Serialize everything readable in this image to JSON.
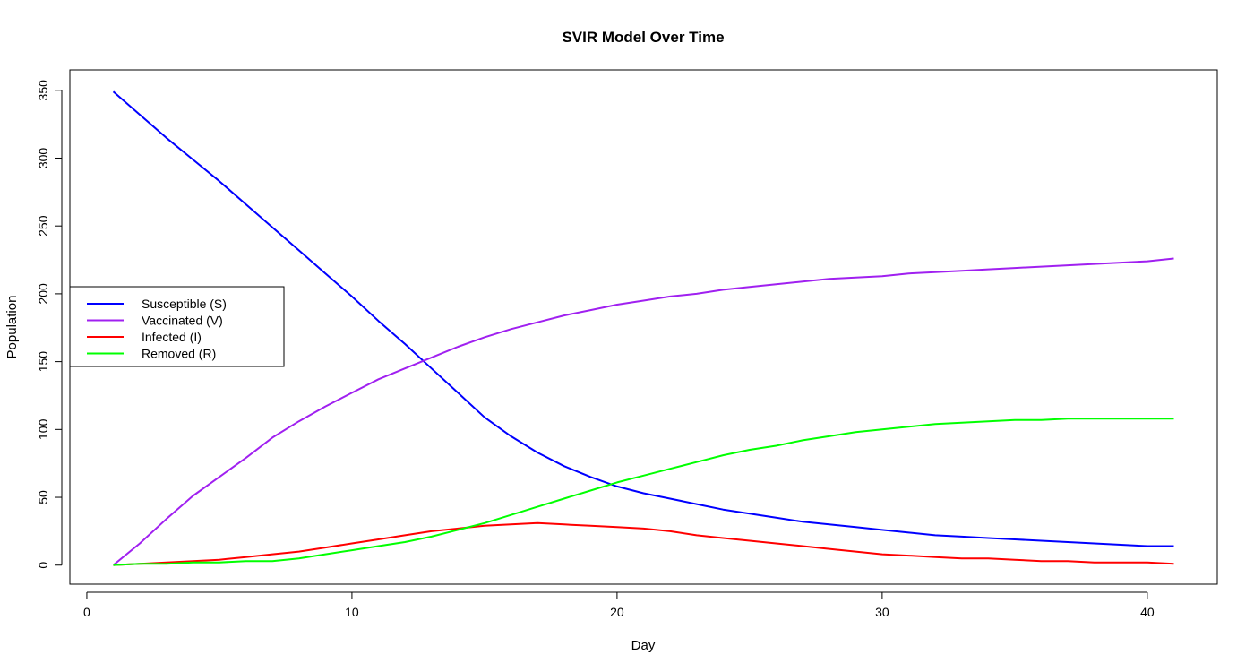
{
  "chart_data": {
    "type": "line",
    "title": "SVIR Model Over Time",
    "xlabel": "Day",
    "ylabel": "Population",
    "xlim": [
      -0.64,
      42.64
    ],
    "ylim": [
      -14.04,
      365.04
    ],
    "xticks": [
      0,
      10,
      20,
      30,
      40
    ],
    "yticks": [
      0,
      50,
      100,
      150,
      200,
      250,
      300,
      350
    ],
    "grid": false,
    "legend_position": "left",
    "x": [
      1,
      2,
      3,
      4,
      5,
      6,
      7,
      8,
      9,
      10,
      11,
      12,
      13,
      14,
      15,
      16,
      17,
      18,
      19,
      20,
      21,
      22,
      23,
      24,
      25,
      26,
      27,
      28,
      29,
      30,
      31,
      32,
      33,
      34,
      35,
      36,
      37,
      38,
      39,
      40,
      41
    ],
    "series": [
      {
        "name": "Susceptible (S)",
        "color": "#0000ff",
        "values": [
          349,
          332,
          315,
          299,
          283,
          266,
          249,
          232,
          215,
          198,
          180,
          163,
          145,
          127,
          109,
          95,
          83,
          73,
          65,
          58,
          53,
          49,
          45,
          41,
          38,
          35,
          32,
          30,
          28,
          26,
          24,
          22,
          21,
          20,
          19,
          18,
          17,
          16,
          15,
          14,
          14
        ]
      },
      {
        "name": "Vaccinated (V)",
        "color": "#a020f0",
        "values": [
          0,
          16,
          34,
          51,
          65,
          79,
          94,
          106,
          117,
          127,
          137,
          145,
          153,
          161,
          168,
          174,
          179,
          184,
          188,
          192,
          195,
          198,
          200,
          203,
          205,
          207,
          209,
          211,
          212,
          213,
          215,
          216,
          217,
          218,
          219,
          220,
          221,
          222,
          223,
          224,
          226
        ]
      },
      {
        "name": "Infected (I)",
        "color": "#ff0000",
        "values": [
          0,
          1,
          2,
          3,
          4,
          6,
          8,
          10,
          13,
          16,
          19,
          22,
          25,
          27,
          29,
          30,
          31,
          30,
          29,
          28,
          27,
          25,
          22,
          20,
          18,
          16,
          14,
          12,
          10,
          8,
          7,
          6,
          5,
          5,
          4,
          3,
          3,
          2,
          2,
          2,
          1
        ]
      },
      {
        "name": "Removed (R)",
        "color": "#00ff00",
        "values": [
          0,
          1,
          1,
          2,
          2,
          3,
          3,
          5,
          8,
          11,
          14,
          17,
          21,
          26,
          31,
          37,
          43,
          49,
          55,
          61,
          66,
          71,
          76,
          81,
          85,
          88,
          92,
          95,
          98,
          100,
          102,
          104,
          105,
          106,
          107,
          107,
          108,
          108,
          108,
          108,
          108
        ]
      }
    ]
  }
}
